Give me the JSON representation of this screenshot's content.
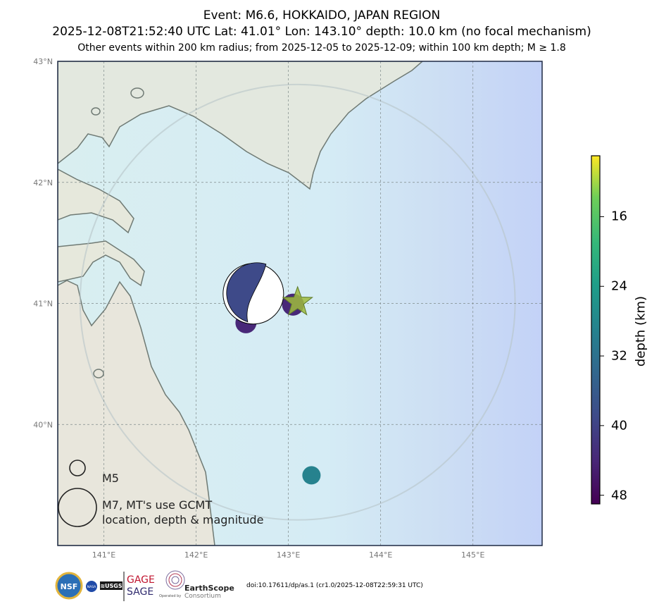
{
  "header": {
    "event_line": "Event: M6.6, HOKKAIDO, JAPAN REGION",
    "details_line": "2025-12-08T21:52:40 UTC Lat: 41.01° Lon: 143.10° depth: 10.0 km (no focal mechanism)",
    "filter_line": "Other events within 200 km radius; from 2025-12-05 to 2025-12-09; within 100 km depth; M ≥ 1.8"
  },
  "map": {
    "lat_range": [
      39,
      43
    ],
    "lon_range": [
      140.5,
      145.75
    ],
    "lat_ticks": [
      {
        "value": 43,
        "label": "43°N"
      },
      {
        "value": 42,
        "label": "42°N"
      },
      {
        "value": 41,
        "label": "41°N"
      },
      {
        "value": 40,
        "label": "40°N"
      }
    ],
    "lon_ticks": [
      {
        "value": 141,
        "label": "141°E"
      },
      {
        "value": 142,
        "label": "142°E"
      },
      {
        "value": 143,
        "label": "143°E"
      },
      {
        "value": 144,
        "label": "144°E"
      },
      {
        "value": 145,
        "label": "145°E"
      }
    ],
    "search_radius_km": 200,
    "main_event": {
      "lat": 41.01,
      "lon": 143.1,
      "depth_km": 10.0,
      "magnitude": 6.6,
      "symbol": "star"
    },
    "mechanism": {
      "lat": 41.08,
      "lon": 142.62,
      "depth_km": 40,
      "magnitude": 6.6,
      "source": "GCMT"
    },
    "other_events": [
      {
        "lat": 40.84,
        "lon": 142.54,
        "depth_km": 45,
        "magnitude": 5.3
      },
      {
        "lat": 40.99,
        "lon": 143.05,
        "depth_km": 42,
        "magnitude": 5.4
      },
      {
        "lat": 39.58,
        "lon": 143.25,
        "depth_km": 30,
        "magnitude": 5.0
      }
    ]
  },
  "legend": {
    "m5_label": "M5",
    "m7_line1": "M7, MT's use GCMT",
    "m7_line2": "location, depth & magnitude"
  },
  "colorbar": {
    "title": "depth (km)",
    "range": [
      49,
      9
    ],
    "ticks": [
      16,
      24,
      32,
      40,
      48
    ],
    "colormap": "viridis"
  },
  "footer": {
    "doi": "doi:10.17611/dp/as.1 (cr1.0/2025-12-08T22:59:31 UTC)",
    "logos": {
      "nsf": "NSF",
      "nasa": "NASA",
      "usgs": "≋USGS",
      "gage": "GAGE",
      "sage": "SAGE",
      "earthscope": "EarthScope",
      "consortium": "Consortium",
      "operated_by": "Operated by"
    }
  },
  "colors": {
    "ocean": "#d6ecf3",
    "deep_ocean": "#c3d4f5",
    "land": "#e2e8dc",
    "coastline": "#6f7a74",
    "grid": "#7f8a8a",
    "gage_red": "#c0142f",
    "sage_purple": "#2f2a6e"
  }
}
